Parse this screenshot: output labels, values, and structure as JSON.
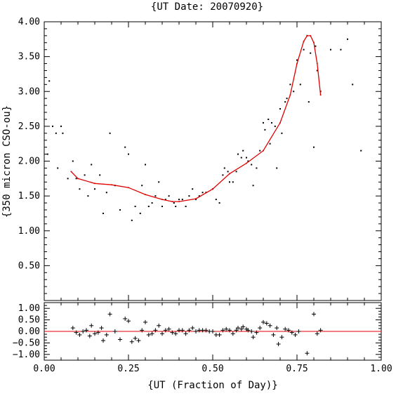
{
  "chart_data": [
    {
      "type": "scatter",
      "title": "{UT Date: 20070920}",
      "xlabel": "",
      "ylabel": "{350 micron CSO-ou}",
      "xlim": [
        0.0,
        1.0
      ],
      "ylim": [
        0.0,
        4.0
      ],
      "xticks": [
        "0.00",
        "0.25",
        "0.50",
        "0.75",
        "1.00"
      ],
      "yticks": [
        "0.50",
        "1.00",
        "1.50",
        "2.00",
        "2.50",
        "3.00",
        "3.50",
        "4.00"
      ],
      "series": [
        {
          "points": [
            [
              0.01,
              2.1
            ],
            [
              0.015,
              3.15
            ],
            [
              0.025,
              2.5
            ],
            [
              0.035,
              2.4
            ],
            [
              0.04,
              1.9
            ],
            [
              0.05,
              2.5
            ],
            [
              0.055,
              2.4
            ],
            [
              0.07,
              1.75
            ],
            [
              0.085,
              2.0
            ],
            [
              0.095,
              1.75
            ],
            [
              0.105,
              1.6
            ],
            [
              0.12,
              1.8
            ],
            [
              0.13,
              1.5
            ],
            [
              0.14,
              1.95
            ],
            [
              0.15,
              1.6
            ],
            [
              0.165,
              1.8
            ],
            [
              0.175,
              1.25
            ],
            [
              0.185,
              1.55
            ],
            [
              0.195,
              2.4
            ],
            [
              0.21,
              1.65
            ],
            [
              0.225,
              1.3
            ],
            [
              0.24,
              2.2
            ],
            [
              0.25,
              2.1
            ],
            [
              0.26,
              1.15
            ],
            [
              0.27,
              1.35
            ],
            [
              0.285,
              1.25
            ],
            [
              0.29,
              1.65
            ],
            [
              0.3,
              1.95
            ],
            [
              0.31,
              1.35
            ],
            [
              0.32,
              1.4
            ],
            [
              0.33,
              1.5
            ],
            [
              0.34,
              1.7
            ],
            [
              0.35,
              1.35
            ],
            [
              0.36,
              1.45
            ],
            [
              0.37,
              1.5
            ],
            [
              0.385,
              1.4
            ],
            [
              0.39,
              1.35
            ],
            [
              0.4,
              1.45
            ],
            [
              0.41,
              1.45
            ],
            [
              0.42,
              1.35
            ],
            [
              0.43,
              1.5
            ],
            [
              0.44,
              1.6
            ],
            [
              0.45,
              1.45
            ],
            [
              0.46,
              1.5
            ],
            [
              0.47,
              1.55
            ],
            [
              0.48,
              1.55
            ],
            [
              0.5,
              1.6
            ],
            [
              0.51,
              1.45
            ],
            [
              0.52,
              1.4
            ],
            [
              0.53,
              1.8
            ],
            [
              0.535,
              1.9
            ],
            [
              0.545,
              1.85
            ],
            [
              0.55,
              1.7
            ],
            [
              0.56,
              1.7
            ],
            [
              0.57,
              1.85
            ],
            [
              0.575,
              2.1
            ],
            [
              0.585,
              2.05
            ],
            [
              0.59,
              2.15
            ],
            [
              0.6,
              2.05
            ],
            [
              0.605,
              2.0
            ],
            [
              0.615,
              1.95
            ],
            [
              0.62,
              1.65
            ],
            [
              0.63,
              1.9
            ],
            [
              0.64,
              2.15
            ],
            [
              0.65,
              2.55
            ],
            [
              0.655,
              2.45
            ],
            [
              0.665,
              2.6
            ],
            [
              0.67,
              2.25
            ],
            [
              0.675,
              2.55
            ],
            [
              0.685,
              2.5
            ],
            [
              0.69,
              1.9
            ],
            [
              0.7,
              2.75
            ],
            [
              0.705,
              2.4
            ],
            [
              0.715,
              2.85
            ],
            [
              0.72,
              2.9
            ],
            [
              0.73,
              3.1
            ],
            [
              0.74,
              3.0
            ],
            [
              0.75,
              3.45
            ],
            [
              0.76,
              3.1
            ],
            [
              0.77,
              3.6
            ],
            [
              0.78,
              3.8
            ],
            [
              0.785,
              2.85
            ],
            [
              0.79,
              3.55
            ],
            [
              0.8,
              2.2
            ],
            [
              0.805,
              3.65
            ],
            [
              0.81,
              3.3
            ],
            [
              0.82,
              3.0
            ],
            [
              0.85,
              3.6
            ],
            [
              0.88,
              3.6
            ],
            [
              0.9,
              3.75
            ],
            [
              0.915,
              3.1
            ],
            [
              0.94,
              2.15
            ]
          ]
        },
        {
          "type": "line",
          "color": "#e00000",
          "points": [
            [
              0.08,
              1.85
            ],
            [
              0.1,
              1.75
            ],
            [
              0.15,
              1.68
            ],
            [
              0.2,
              1.66
            ],
            [
              0.25,
              1.62
            ],
            [
              0.3,
              1.52
            ],
            [
              0.35,
              1.45
            ],
            [
              0.38,
              1.42
            ],
            [
              0.4,
              1.42
            ],
            [
              0.45,
              1.46
            ],
            [
              0.5,
              1.6
            ],
            [
              0.55,
              1.82
            ],
            [
              0.6,
              1.97
            ],
            [
              0.65,
              2.15
            ],
            [
              0.7,
              2.55
            ],
            [
              0.73,
              2.95
            ],
            [
              0.75,
              3.4
            ],
            [
              0.77,
              3.72
            ],
            [
              0.78,
              3.8
            ],
            [
              0.79,
              3.8
            ],
            [
              0.8,
              3.7
            ],
            [
              0.81,
              3.4
            ],
            [
              0.82,
              2.95
            ]
          ]
        }
      ]
    },
    {
      "type": "scatter",
      "title": "",
      "xlabel": "{UT (Fraction of Day)}",
      "ylabel": "",
      "xlim": [
        0.0,
        1.0
      ],
      "ylim": [
        -1.25,
        1.25
      ],
      "xticks": [
        "0.00",
        "0.25",
        "0.50",
        "0.75",
        "1.00"
      ],
      "yticks": [
        "−1.00",
        "−0.50",
        "0.00",
        "0.50",
        "1.00"
      ],
      "zero_line": {
        "y": 0.0,
        "color": "#e00000"
      },
      "series": [
        {
          "marker": "+",
          "points": [
            [
              0.085,
              0.15
            ],
            [
              0.095,
              -0.05
            ],
            [
              0.105,
              -0.15
            ],
            [
              0.115,
              0.0
            ],
            [
              0.125,
              0.05
            ],
            [
              0.135,
              -0.2
            ],
            [
              0.14,
              0.25
            ],
            [
              0.15,
              -0.1
            ],
            [
              0.16,
              -0.05
            ],
            [
              0.17,
              0.15
            ],
            [
              0.175,
              -0.4
            ],
            [
              0.185,
              -0.15
            ],
            [
              0.195,
              0.75
            ],
            [
              0.21,
              0.0
            ],
            [
              0.225,
              -0.35
            ],
            [
              0.24,
              0.55
            ],
            [
              0.25,
              0.45
            ],
            [
              0.26,
              -0.45
            ],
            [
              0.27,
              -0.3
            ],
            [
              0.28,
              -0.4
            ],
            [
              0.29,
              0.05
            ],
            [
              0.3,
              0.4
            ],
            [
              0.31,
              -0.15
            ],
            [
              0.32,
              -0.1
            ],
            [
              0.33,
              0.05
            ],
            [
              0.34,
              0.25
            ],
            [
              0.35,
              -0.1
            ],
            [
              0.36,
              0.05
            ],
            [
              0.37,
              0.1
            ],
            [
              0.38,
              -0.05
            ],
            [
              0.39,
              -0.1
            ],
            [
              0.4,
              0.05
            ],
            [
              0.41,
              0.05
            ],
            [
              0.42,
              -0.1
            ],
            [
              0.43,
              0.05
            ],
            [
              0.44,
              0.15
            ],
            [
              0.45,
              0.0
            ],
            [
              0.46,
              0.05
            ],
            [
              0.47,
              0.05
            ],
            [
              0.48,
              0.05
            ],
            [
              0.49,
              0.0
            ],
            [
              0.5,
              0.0
            ],
            [
              0.51,
              -0.15
            ],
            [
              0.52,
              -0.15
            ],
            [
              0.53,
              0.05
            ],
            [
              0.54,
              0.1
            ],
            [
              0.55,
              0.05
            ],
            [
              0.56,
              -0.1
            ],
            [
              0.57,
              0.05
            ],
            [
              0.575,
              0.15
            ],
            [
              0.585,
              0.1
            ],
            [
              0.59,
              0.2
            ],
            [
              0.6,
              0.1
            ],
            [
              0.605,
              0.05
            ],
            [
              0.615,
              0.0
            ],
            [
              0.62,
              -0.25
            ],
            [
              0.63,
              -0.05
            ],
            [
              0.64,
              0.15
            ],
            [
              0.65,
              0.4
            ],
            [
              0.66,
              0.35
            ],
            [
              0.67,
              0.25
            ],
            [
              0.68,
              -0.15
            ],
            [
              0.69,
              0.15
            ],
            [
              0.695,
              -0.55
            ],
            [
              0.705,
              -0.25
            ],
            [
              0.715,
              0.1
            ],
            [
              0.725,
              0.05
            ],
            [
              0.735,
              -0.05
            ],
            [
              0.745,
              -0.15
            ],
            [
              0.755,
              0.0
            ],
            [
              0.78,
              -0.95
            ],
            [
              0.8,
              0.75
            ],
            [
              0.81,
              -0.1
            ],
            [
              0.82,
              0.05
            ]
          ]
        }
      ]
    }
  ]
}
